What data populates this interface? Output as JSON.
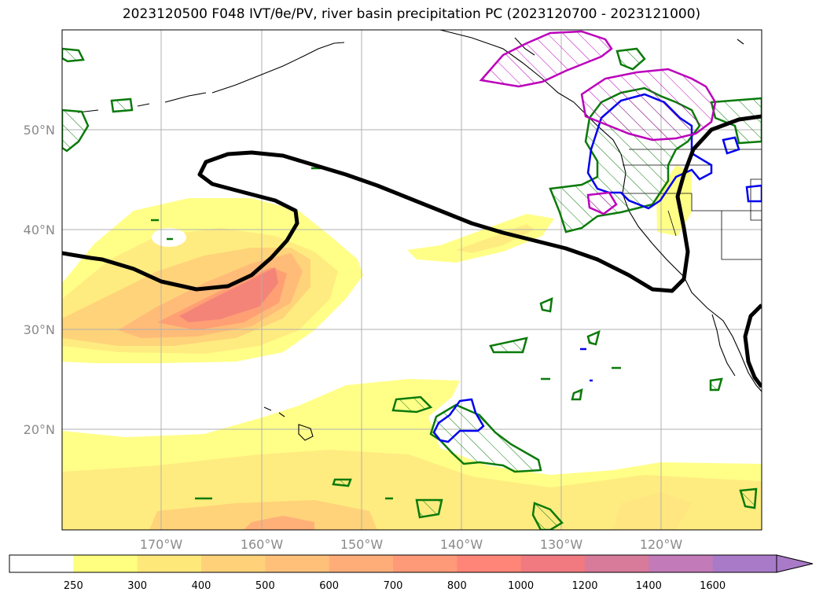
{
  "title": "2023120500 F048 IVT/θe/PV, river basin precipitation PC (2023120700 - 2023121000)",
  "map": {
    "lat_labels": [
      "50°N",
      "40°N",
      "30°N",
      "20°N"
    ],
    "lon_labels": [
      "170°W",
      "160°W",
      "150°W",
      "140°W",
      "130°W",
      "120°W"
    ],
    "colors": {
      "ivt_250": "#ffff80",
      "ivt_300": "#ffe680",
      "ivt_400": "#ffc878",
      "ivt_600": "#ff9a70",
      "ivt_800": "#f07c78",
      "contour_black": "#000000",
      "contour_green": "#0a7a0a",
      "contour_blue": "#0000ee",
      "contour_magenta": "#bb00bb",
      "grid": "#b0b0b0"
    }
  },
  "colorbar": {
    "ticks": [
      "250",
      "300",
      "400",
      "500",
      "600",
      "700",
      "800",
      "1000",
      "1200",
      "1400",
      "1600"
    ],
    "colors": [
      "#ffffff",
      "#ffff80",
      "#ffe87a",
      "#ffd27a",
      "#ffc07a",
      "#ffad78",
      "#ff9a78",
      "#ff8578",
      "#f07a80",
      "#d87a9a",
      "#c27ab8",
      "#a87ac8"
    ]
  }
}
